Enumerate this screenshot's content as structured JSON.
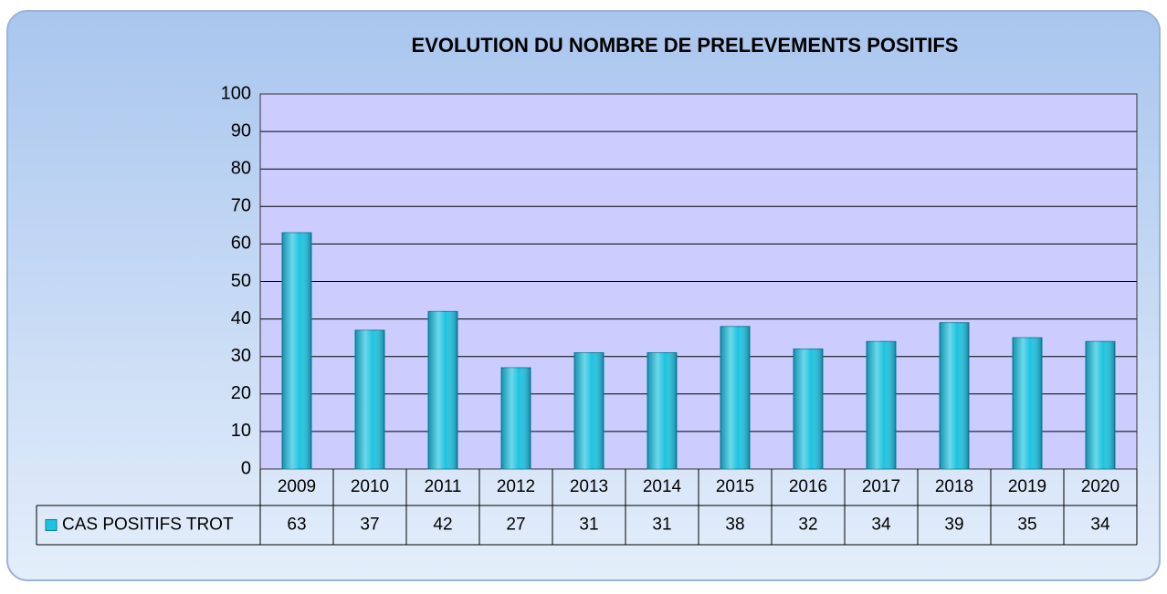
{
  "chart_data": {
    "type": "bar",
    "title": "EVOLUTION DU NOMBRE DE PRELEVEMENTS POSITIFS",
    "categories": [
      "2009",
      "2010",
      "2011",
      "2012",
      "2013",
      "2014",
      "2015",
      "2016",
      "2017",
      "2018",
      "2019",
      "2020"
    ],
    "series": [
      {
        "name": "CAS POSITIFS TROT",
        "color": "#1ec3e0",
        "values": [
          63,
          37,
          42,
          27,
          31,
          31,
          38,
          32,
          34,
          39,
          35,
          34
        ]
      }
    ],
    "ylim": [
      0,
      100
    ],
    "yticks": [
      0,
      10,
      20,
      30,
      40,
      50,
      60,
      70,
      80,
      90,
      100
    ],
    "grid": true
  }
}
